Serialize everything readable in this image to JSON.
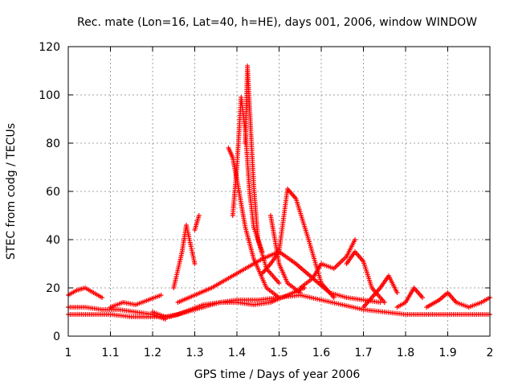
{
  "chart_data": {
    "type": "scatter",
    "title": "Rec. mate (Lon=16, Lat=40, h=HE), days 001, 2006, window WINDOW",
    "xlabel": "GPS time / Days of year 2006",
    "ylabel": "STEC from codg / TECUs",
    "xlim": [
      1,
      2
    ],
    "ylim": [
      0,
      120
    ],
    "xticks": [
      "1",
      "1.1",
      "1.2",
      "1.3",
      "1.4",
      "1.5",
      "1.6",
      "1.7",
      "1.8",
      "1.9",
      "2"
    ],
    "yticks": [
      "0",
      "20",
      "40",
      "60",
      "80",
      "100",
      "120"
    ],
    "grid": true,
    "legend": "none",
    "marker": "plus",
    "color": "#ff0000",
    "series": [
      {
        "x": [
          1.0,
          1.05,
          1.1,
          1.15,
          1.2,
          1.24,
          1.28,
          1.32,
          1.36,
          1.4,
          1.45,
          1.5,
          1.55,
          1.6,
          1.65,
          1.7,
          1.75,
          1.8,
          1.85,
          1.9,
          1.95,
          2.0
        ],
        "y": [
          9,
          9,
          9,
          8,
          8,
          8,
          10,
          12,
          14,
          15,
          15,
          16,
          17,
          15,
          13,
          11,
          10,
          9,
          9,
          9,
          9,
          9
        ]
      },
      {
        "x": [
          1.0,
          1.04,
          1.08,
          1.12,
          1.16,
          1.2,
          1.23
        ],
        "y": [
          12,
          12,
          11,
          11,
          10,
          9,
          7
        ]
      },
      {
        "x": [
          1.0,
          1.02,
          1.04,
          1.06,
          1.08
        ],
        "y": [
          17,
          19,
          20,
          18,
          16
        ]
      },
      {
        "x": [
          1.2,
          1.23,
          1.26,
          1.29,
          1.32,
          1.36,
          1.4,
          1.44,
          1.48,
          1.52,
          1.56
        ],
        "y": [
          10,
          8,
          9,
          11,
          13,
          14,
          14,
          13,
          14,
          17,
          20
        ]
      },
      {
        "x": [
          1.25,
          1.27,
          1.28,
          1.29,
          1.3
        ],
        "y": [
          20,
          35,
          46,
          38,
          30
        ]
      },
      {
        "x": [
          1.3,
          1.31
        ],
        "y": [
          44,
          50
        ]
      },
      {
        "x": [
          1.26,
          1.3,
          1.34,
          1.38,
          1.42,
          1.46,
          1.5,
          1.54,
          1.58,
          1.62,
          1.66,
          1.7,
          1.74
        ],
        "y": [
          14,
          17,
          20,
          24,
          28,
          32,
          35,
          30,
          24,
          18,
          16,
          15,
          14
        ]
      },
      {
        "x": [
          1.38,
          1.39,
          1.4,
          1.41,
          1.42,
          1.44,
          1.47,
          1.5
        ],
        "y": [
          78,
          74,
          65,
          55,
          45,
          32,
          20,
          16
        ]
      },
      {
        "x": [
          1.39,
          1.4,
          1.41,
          1.42,
          1.43,
          1.44,
          1.46
        ],
        "y": [
          50,
          70,
          99,
          85,
          60,
          45,
          35
        ]
      },
      {
        "x": [
          1.42,
          1.425,
          1.43,
          1.44,
          1.45,
          1.47,
          1.5
        ],
        "y": [
          80,
          112,
          95,
          62,
          40,
          28,
          22
        ]
      },
      {
        "x": [
          1.46,
          1.48,
          1.5,
          1.52,
          1.54,
          1.57,
          1.6,
          1.63
        ],
        "y": [
          26,
          30,
          35,
          61,
          57,
          40,
          22,
          16
        ]
      },
      {
        "x": [
          1.48,
          1.49,
          1.5,
          1.52,
          1.55
        ],
        "y": [
          50,
          40,
          30,
          22,
          18
        ]
      },
      {
        "x": [
          1.55,
          1.58,
          1.6,
          1.63,
          1.66,
          1.68
        ],
        "y": [
          20,
          24,
          30,
          28,
          33,
          40
        ]
      },
      {
        "x": [
          1.66,
          1.68,
          1.7,
          1.72,
          1.75
        ],
        "y": [
          30,
          35,
          31,
          20,
          14
        ]
      },
      {
        "x": [
          1.7,
          1.72,
          1.74,
          1.76,
          1.78
        ],
        "y": [
          12,
          16,
          20,
          25,
          18
        ]
      },
      {
        "x": [
          1.78,
          1.8,
          1.82,
          1.84
        ],
        "y": [
          12,
          14,
          20,
          16
        ]
      },
      {
        "x": [
          1.85,
          1.88,
          1.9,
          1.92,
          1.95,
          1.98,
          2.0
        ],
        "y": [
          12,
          15,
          18,
          14,
          12,
          14,
          16
        ]
      },
      {
        "x": [
          1.1,
          1.13,
          1.16,
          1.19,
          1.22
        ],
        "y": [
          12,
          14,
          13,
          15,
          17
        ]
      }
    ]
  }
}
